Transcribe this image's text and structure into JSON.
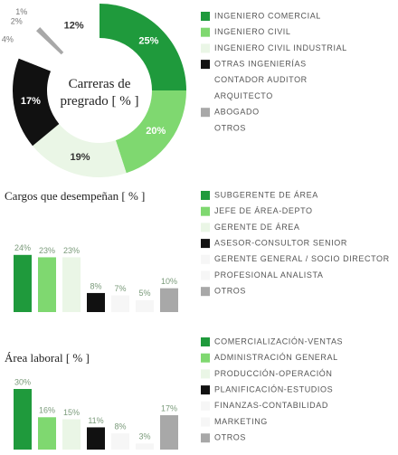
{
  "chart_data": [
    {
      "type": "pie",
      "title": "Carreras de pregrado [ % ]",
      "categories": [
        "INGENIERO COMERCIAL",
        "INGENIERO CIVIL",
        "INGENIERO CIVIL INDUSTRIAL",
        "OTRAS INGENIERÍAS",
        "CONTADOR AUDITOR",
        "ARQUITECTO",
        "ABOGADO",
        "OTROS"
      ],
      "values": [
        25,
        20,
        19,
        17,
        4,
        2,
        1,
        12
      ],
      "value_labels": [
        "25%",
        "20%",
        "19%",
        "17%",
        "4%",
        "2%",
        "1%",
        "12%"
      ],
      "colors": [
        "#1f9a3c",
        "#7fd870",
        "#eaf6e6",
        "#111111",
        "#ffffff",
        "#ffffff",
        "#a8a8a8",
        "#ffffff"
      ]
    },
    {
      "type": "bar",
      "title": "Cargos que desempeñan [ % ]",
      "categories": [
        "SUBGERENTE DE ÁREA",
        "JEFE DE ÁREA-DEPTO",
        "GERENTE DE ÁREA",
        "ASESOR-CONSULTOR SENIOR",
        "GERENTE GENERAL / SOCIO DIRECTOR",
        "PROFESIONAL ANALISTA",
        "OTROS"
      ],
      "values": [
        24,
        23,
        23,
        8,
        7,
        5,
        10
      ],
      "value_labels": [
        "24%",
        "23%",
        "23%",
        "8%",
        "7%",
        "5%",
        "10%"
      ],
      "colors": [
        "#1f9a3c",
        "#7fd870",
        "#eaf6e6",
        "#111111",
        "#f6f6f6",
        "#f6f6f6",
        "#a8a8a8"
      ],
      "ylim": [
        0,
        30
      ]
    },
    {
      "type": "bar",
      "title": "Área laboral [ % ]",
      "categories": [
        "COMERCIALIZACIÓN-VENTAS",
        "ADMINISTRACIÓN GENERAL",
        "PRODUCCIÓN-OPERACIÓN",
        "PLANIFICACIÓN-ESTUDIOS",
        "FINANZAS-CONTABILIDAD",
        "MARKETING",
        "OTROS"
      ],
      "values": [
        30,
        16,
        15,
        11,
        8,
        3,
        17
      ],
      "value_labels": [
        "30%",
        "16%",
        "15%",
        "11%",
        "8%",
        "3%",
        "17%"
      ],
      "colors": [
        "#1f9a3c",
        "#7fd870",
        "#eaf6e6",
        "#111111",
        "#f6f6f6",
        "#f6f6f6",
        "#a8a8a8"
      ],
      "ylim": [
        0,
        30
      ]
    }
  ]
}
